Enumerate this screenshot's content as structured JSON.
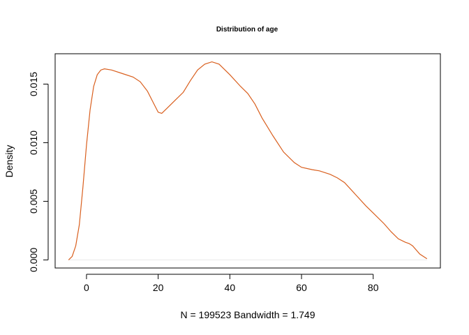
{
  "chart_data": {
    "type": "line",
    "title": "Distribution of age",
    "xlabel": "N = 199523   Bandwidth = 1.749",
    "ylabel": "Density",
    "xlim": [
      -8.75,
      98.75
    ],
    "ylim": [
      -0.00069,
      0.01759
    ],
    "x_ticks": [
      0,
      20,
      40,
      60,
      80
    ],
    "x_tick_labels": [
      "0",
      "20",
      "40",
      "60",
      "80"
    ],
    "y_ticks": [
      0,
      0.005,
      0.01,
      0.015
    ],
    "y_tick_labels": [
      "0.000",
      "0.005",
      "0.010",
      "0.015"
    ],
    "grid": false,
    "line_color": "#d95f1e",
    "baseline_color": "#e8e8e8",
    "series": [
      {
        "x": [
          -5,
          -4,
          -3,
          -2,
          -1,
          0,
          1,
          2,
          3,
          4,
          5,
          7,
          10,
          13,
          15,
          17,
          19,
          20,
          21,
          23,
          25,
          27,
          29,
          31,
          33,
          35,
          37,
          40,
          43,
          45,
          47,
          49,
          50,
          52,
          55,
          58,
          60,
          63,
          65,
          68,
          70,
          72,
          75,
          78,
          80,
          83,
          85,
          87,
          89,
          90,
          91,
          93,
          95
        ],
        "y": [
          0.0,
          0.0003,
          0.0012,
          0.003,
          0.0062,
          0.0098,
          0.0128,
          0.0148,
          0.0158,
          0.0162,
          0.0163,
          0.0162,
          0.0159,
          0.0156,
          0.0152,
          0.0144,
          0.0132,
          0.0126,
          0.0125,
          0.0131,
          0.0137,
          0.0143,
          0.0153,
          0.0162,
          0.0167,
          0.0169,
          0.0167,
          0.0158,
          0.0148,
          0.0142,
          0.0133,
          0.0121,
          0.0116,
          0.0106,
          0.0092,
          0.0083,
          0.0079,
          0.0077,
          0.0076,
          0.0073,
          0.007,
          0.0066,
          0.0056,
          0.0046,
          0.004,
          0.0031,
          0.0024,
          0.0018,
          0.0015,
          0.0014,
          0.0012,
          0.0005,
          0.0001
        ]
      }
    ]
  }
}
